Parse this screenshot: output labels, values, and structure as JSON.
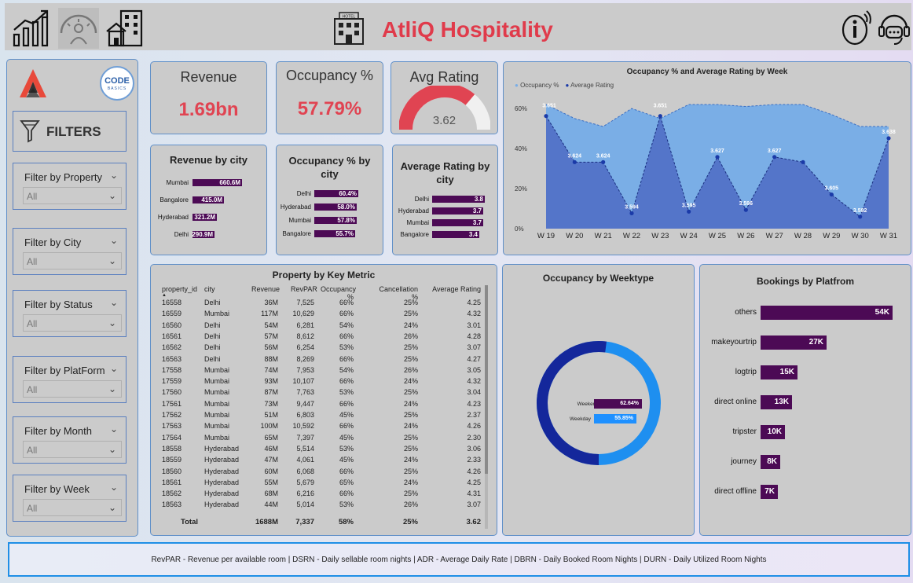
{
  "header": {
    "title": "AtliQ Hospitality",
    "hotel_icon_label": "HOTEL",
    "nav_icons": [
      "growth-chart-icon",
      "speedometer-icon",
      "buildings-icon"
    ],
    "right_icons": [
      "info-icon",
      "support-icon"
    ],
    "title_color": "#e03b4b"
  },
  "sidebar": {
    "logo_text": "CODE",
    "logo_subtext": "BASICS",
    "filters_label": "FILTERS",
    "filters": [
      {
        "label": "Filter by Property",
        "value": "All"
      },
      {
        "label": "Filter by City",
        "value": "All"
      },
      {
        "label": "Filter by Status",
        "value": "All"
      },
      {
        "label": "Filter by PlatForm",
        "value": "All"
      },
      {
        "label": "Filter by Month",
        "value": "All"
      },
      {
        "label": "Filter by Week",
        "value": "All"
      }
    ]
  },
  "kpis": {
    "revenue": {
      "title": "Revenue",
      "value": "1.69bn"
    },
    "occupancy": {
      "title": "Occupancy %",
      "value": "57.79%"
    },
    "rating": {
      "title": "Avg Rating",
      "value": "3.62",
      "gauge_fraction": 0.724
    }
  },
  "revenue_by_city": {
    "title": "Revenue by city",
    "items": [
      {
        "city": "Mumbai",
        "label": "660.6M",
        "value": 660.6
      },
      {
        "city": "Bangalore",
        "label": "415.0M",
        "value": 415.0
      },
      {
        "city": "Hyderabad",
        "label": "321.2M",
        "value": 321.2
      },
      {
        "city": "Delhi",
        "label": "290.9M",
        "value": 290.9
      }
    ]
  },
  "occupancy_by_city": {
    "title_line1": "Occupancy % by",
    "title_line2": "city",
    "items": [
      {
        "city": "Delhi",
        "label": "60.4%",
        "value": 60.4
      },
      {
        "city": "Hyderabad",
        "label": "58.0%",
        "value": 58.0
      },
      {
        "city": "Mumbai",
        "label": "57.8%",
        "value": 57.8
      },
      {
        "city": "Bangalore",
        "label": "55.7%",
        "value": 55.7
      }
    ]
  },
  "rating_by_city": {
    "title_line1": "Average Rating by",
    "title_line2": "city",
    "items": [
      {
        "city": "Delhi",
        "label": "3.8",
        "value": 3.8
      },
      {
        "city": "Hyderabad",
        "label": "3.7",
        "value": 3.7
      },
      {
        "city": "Mumbai",
        "label": "3.7",
        "value": 3.7
      },
      {
        "city": "Bangalore",
        "label": "3.4",
        "value": 3.4
      }
    ]
  },
  "weekly_chart": {
    "title": "Occupancy % and Average Rating by Week",
    "legend": [
      "Occupancy %",
      "Average Rating"
    ],
    "y_ticks": [
      "60%",
      "40%",
      "20%",
      "0%"
    ],
    "weeks": [
      "W 19",
      "W 20",
      "W 21",
      "W 22",
      "W 23",
      "W 24",
      "W 25",
      "W 26",
      "W 27",
      "W 28",
      "W 29",
      "W 30",
      "W 31"
    ],
    "occupancy": [
      62,
      55,
      51,
      60,
      55,
      62,
      62,
      61,
      62,
      62,
      57,
      51,
      51
    ],
    "rating": [
      3.651,
      3.624,
      3.624,
      3.594,
      3.651,
      3.595,
      3.627,
      3.596,
      3.627,
      3.624,
      3.605,
      3.592,
      3.638
    ],
    "rating_labels": [
      "3.651",
      "3.624",
      "3.624",
      "3.594",
      "3.651",
      "3.595",
      "3.627",
      "3.596",
      "3.627",
      "",
      "3.605",
      "3.592",
      "3.638"
    ],
    "colors": {
      "occupancy": "#7aaee6",
      "rating": "#5475c9",
      "dot": "#1a3aa8"
    }
  },
  "table": {
    "title": "Property by Key Metric",
    "columns": [
      "property_id",
      "city",
      "Revenue",
      "RevPAR",
      "Occupancy %",
      "Cancellation %",
      "Average Rating"
    ],
    "rows": [
      [
        "16558",
        "Delhi",
        "36M",
        "7,525",
        "66%",
        "25%",
        "4.25"
      ],
      [
        "16559",
        "Mumbai",
        "117M",
        "10,629",
        "66%",
        "25%",
        "4.32"
      ],
      [
        "16560",
        "Delhi",
        "54M",
        "6,281",
        "54%",
        "24%",
        "3.01"
      ],
      [
        "16561",
        "Delhi",
        "57M",
        "8,612",
        "66%",
        "26%",
        "4.28"
      ],
      [
        "16562",
        "Delhi",
        "56M",
        "6,254",
        "53%",
        "25%",
        "3.07"
      ],
      [
        "16563",
        "Delhi",
        "88M",
        "8,269",
        "66%",
        "25%",
        "4.27"
      ],
      [
        "17558",
        "Mumbai",
        "74M",
        "7,953",
        "54%",
        "26%",
        "3.05"
      ],
      [
        "17559",
        "Mumbai",
        "93M",
        "10,107",
        "66%",
        "24%",
        "4.32"
      ],
      [
        "17560",
        "Mumbai",
        "87M",
        "7,763",
        "53%",
        "25%",
        "3.04"
      ],
      [
        "17561",
        "Mumbai",
        "73M",
        "9,447",
        "66%",
        "24%",
        "4.23"
      ],
      [
        "17562",
        "Mumbai",
        "51M",
        "6,803",
        "45%",
        "25%",
        "2.37"
      ],
      [
        "17563",
        "Mumbai",
        "100M",
        "10,592",
        "66%",
        "24%",
        "4.26"
      ],
      [
        "17564",
        "Mumbai",
        "65M",
        "7,397",
        "45%",
        "25%",
        "2.30"
      ],
      [
        "18558",
        "Hyderabad",
        "46M",
        "5,514",
        "53%",
        "25%",
        "3.06"
      ],
      [
        "18559",
        "Hyderabad",
        "47M",
        "4,061",
        "45%",
        "24%",
        "2.33"
      ],
      [
        "18560",
        "Hyderabad",
        "60M",
        "6,068",
        "66%",
        "25%",
        "4.26"
      ],
      [
        "18561",
        "Hyderabad",
        "55M",
        "5,679",
        "65%",
        "24%",
        "4.25"
      ],
      [
        "18562",
        "Hyderabad",
        "68M",
        "6,216",
        "66%",
        "25%",
        "4.31"
      ],
      [
        "18563",
        "Hyderabad",
        "44M",
        "5,014",
        "53%",
        "26%",
        "3.07"
      ]
    ],
    "total": [
      "Total",
      "",
      "1688M",
      "7,337",
      "58%",
      "25%",
      "3.62"
    ]
  },
  "weektype": {
    "title": "Occupancy by Weektype",
    "items": [
      {
        "name": "Weekend",
        "label": "62.64%",
        "value": 62.64,
        "color": "#4c0a55"
      },
      {
        "name": "Weekday",
        "label": "55.85%",
        "value": 55.85,
        "color": "#1e90ff"
      }
    ],
    "donut_colors": [
      "#14279b",
      "#1e8ff0"
    ],
    "donut_fraction_dark": 0.52
  },
  "platform": {
    "title": "Bookings by Platfrom",
    "items": [
      {
        "name": "others",
        "label": "54K",
        "value": 54
      },
      {
        "name": "makeyourtrip",
        "label": "27K",
        "value": 27
      },
      {
        "name": "logtrip",
        "label": "15K",
        "value": 15
      },
      {
        "name": "direct online",
        "label": "13K",
        "value": 13
      },
      {
        "name": "tripster",
        "label": "10K",
        "value": 10
      },
      {
        "name": "journey",
        "label": "8K",
        "value": 8
      },
      {
        "name": "direct offline",
        "label": "7K",
        "value": 7
      }
    ]
  },
  "footer": {
    "text": "RevPAR - Revenue per available room | DSRN - Daily sellable room nights | ADR - Average Daily Rate | DBRN - Daily Booked Room Nights | DURN - Daily Utilized Room Nights"
  }
}
